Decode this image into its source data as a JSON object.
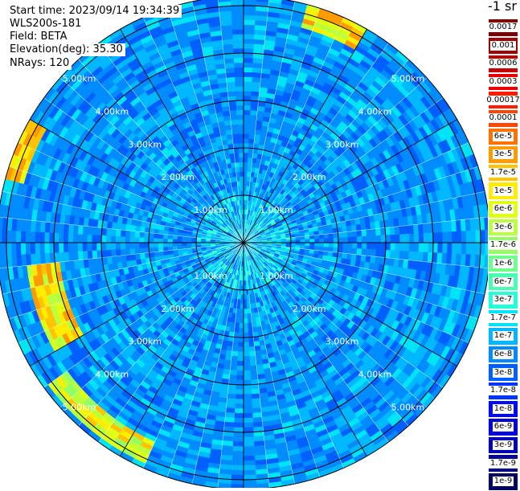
{
  "info": {
    "start_time": "Start time: 2023/09/14 19:34:39",
    "instrument": "WLS200s-181",
    "field": "Field: BETA",
    "elevation": "Elevation(deg): 35.30",
    "nrays": "NRays: 120"
  },
  "colorbar": {
    "unit": "-1 sr",
    "levels": [
      {
        "label": "0.0017",
        "color": "#7f0000"
      },
      {
        "label": "0.001",
        "color": "#a40000"
      },
      {
        "label": "0.0006",
        "color": "#c80000"
      },
      {
        "label": "0.0003",
        "color": "#ee0000"
      },
      {
        "label": "0.00017",
        "color": "#ff1a00"
      },
      {
        "label": "0.0001",
        "color": "#ff4600"
      },
      {
        "label": "6e-5",
        "color": "#ff7200"
      },
      {
        "label": "3e-5",
        "color": "#ff9a00"
      },
      {
        "label": "1.7e-5",
        "color": "#ffc300"
      },
      {
        "label": "1e-5",
        "color": "#ffec00"
      },
      {
        "label": "6e-6",
        "color": "#e0ff16"
      },
      {
        "label": "3e-6",
        "color": "#baff3c"
      },
      {
        "label": "1.7e-6",
        "color": "#93ff63"
      },
      {
        "label": "1e-6",
        "color": "#6cff8a"
      },
      {
        "label": "6e-7",
        "color": "#46ffb1"
      },
      {
        "label": "3e-7",
        "color": "#20ffd7"
      },
      {
        "label": "1.7e-7",
        "color": "#00e4f8"
      },
      {
        "label": "1e-7",
        "color": "#00b8ff"
      },
      {
        "label": "6e-8",
        "color": "#008cff"
      },
      {
        "label": "3e-8",
        "color": "#0060ff"
      },
      {
        "label": "1.7e-8",
        "color": "#0034ff"
      },
      {
        "label": "1e-8",
        "color": "#0008ff"
      },
      {
        "label": "6e-9",
        "color": "#0000e0"
      },
      {
        "label": "3e-9",
        "color": "#0000b8"
      },
      {
        "label": "1.7e-9",
        "color": "#000090"
      },
      {
        "label": "1e-9",
        "color": "#000060"
      }
    ]
  },
  "chart_data": {
    "type": "heatmap",
    "subtype": "polar-ppi",
    "field": "BETA",
    "elevation_deg": 35.3,
    "n_rays": 120,
    "range_rings_km": [
      1,
      2,
      3,
      4,
      5
    ],
    "range_ring_labels": [
      "1.00km",
      "2.00km",
      "3.00km",
      "4.00km",
      "5.00km"
    ],
    "max_range_km": 5.2,
    "azimuth_spokes_deg": [
      0,
      30,
      60,
      90,
      120,
      150,
      180,
      210,
      240,
      270,
      300,
      330
    ],
    "background_level": "1e-7 to 3e-8",
    "features": [
      {
        "description": "enhanced backscatter arc",
        "azimuth_deg": [
          240,
          265
        ],
        "range_km": [
          3.9,
          4.6
        ],
        "peak_level": "3e-5"
      },
      {
        "description": "enhanced backscatter arc",
        "azimuth_deg": [
          205,
          235
        ],
        "range_km": [
          4.6,
          5.1
        ],
        "peak_level": "1.7e-5"
      },
      {
        "description": "enhanced backscatter arc",
        "azimuth_deg": [
          285,
          300
        ],
        "range_km": [
          4.8,
          5.2
        ],
        "peak_level": "3e-5"
      },
      {
        "description": "enhanced backscatter arc",
        "azimuth_deg": [
          15,
          30
        ],
        "range_km": [
          4.7,
          5.2
        ],
        "peak_level": "3e-5"
      }
    ]
  }
}
